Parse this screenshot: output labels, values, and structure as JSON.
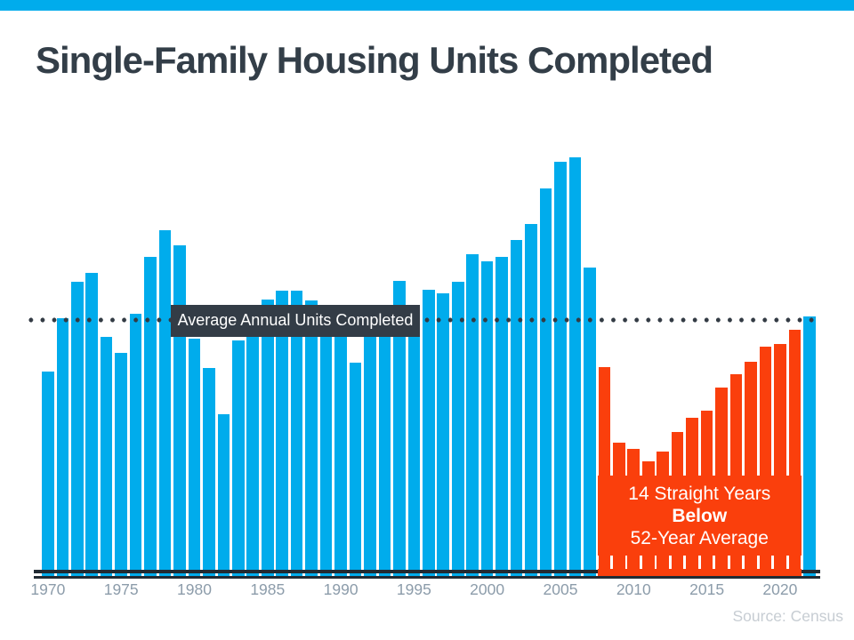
{
  "colors": {
    "blue": "#00ACEC",
    "orange": "#FA3F0C",
    "dark_box": "#333C46",
    "dots": "#333B44",
    "baseline": "#222B33",
    "title": "#333E48",
    "tick_label": "#8C9CAA",
    "source": "#C7CDD3"
  },
  "chart_data": {
    "type": "bar",
    "title": "Single-Family Housing Units Completed",
    "xlabel": "",
    "ylabel": "",
    "units_note": "no y-axis shown; values in thousands of units, estimated from bar heights",
    "x": [
      1970,
      1971,
      1972,
      1973,
      1974,
      1975,
      1976,
      1977,
      1978,
      1979,
      1980,
      1981,
      1982,
      1983,
      1984,
      1985,
      1986,
      1987,
      1988,
      1989,
      1990,
      1991,
      1992,
      1993,
      1994,
      1995,
      1996,
      1997,
      1998,
      1999,
      2000,
      2001,
      2002,
      2003,
      2004,
      2005,
      2006,
      2007,
      2008,
      2009,
      2010,
      2011,
      2012,
      2013,
      2014,
      2015,
      2016,
      2017,
      2018,
      2019,
      2020,
      2021,
      2022
    ],
    "values": [
      805,
      1015,
      1159,
      1194,
      942,
      879,
      1033,
      1257,
      1362,
      1302,
      935,
      819,
      637,
      928,
      1026,
      1089,
      1124,
      1124,
      1085,
      1026,
      977,
      840,
      963,
      1033,
      1162,
      1057,
      1127,
      1113,
      1159,
      1267,
      1239,
      1257,
      1323,
      1386,
      1526,
      1631,
      1649,
      1215,
      823,
      525,
      501,
      452,
      490,
      567,
      623,
      651,
      742,
      795,
      844,
      903,
      914,
      970,
      1022
    ],
    "x_tick_labels": [
      "1970",
      "1975",
      "1980",
      "1985",
      "1990",
      "1995",
      "2000",
      "2005",
      "2010",
      "2015",
      "2020"
    ],
    "average_line": {
      "label": "Average Annual Units Completed",
      "value": 1005,
      "style": "dotted horizontal line across full chart width"
    },
    "below_average_span": {
      "from": 2008,
      "to": 2021
    },
    "annotation": {
      "line1": "14 Straight Years",
      "line2": "Below",
      "line3": "52-Year Average"
    },
    "source": "Source: Census",
    "ylim": [
      0,
      1800
    ],
    "grid": false,
    "legend": false
  }
}
